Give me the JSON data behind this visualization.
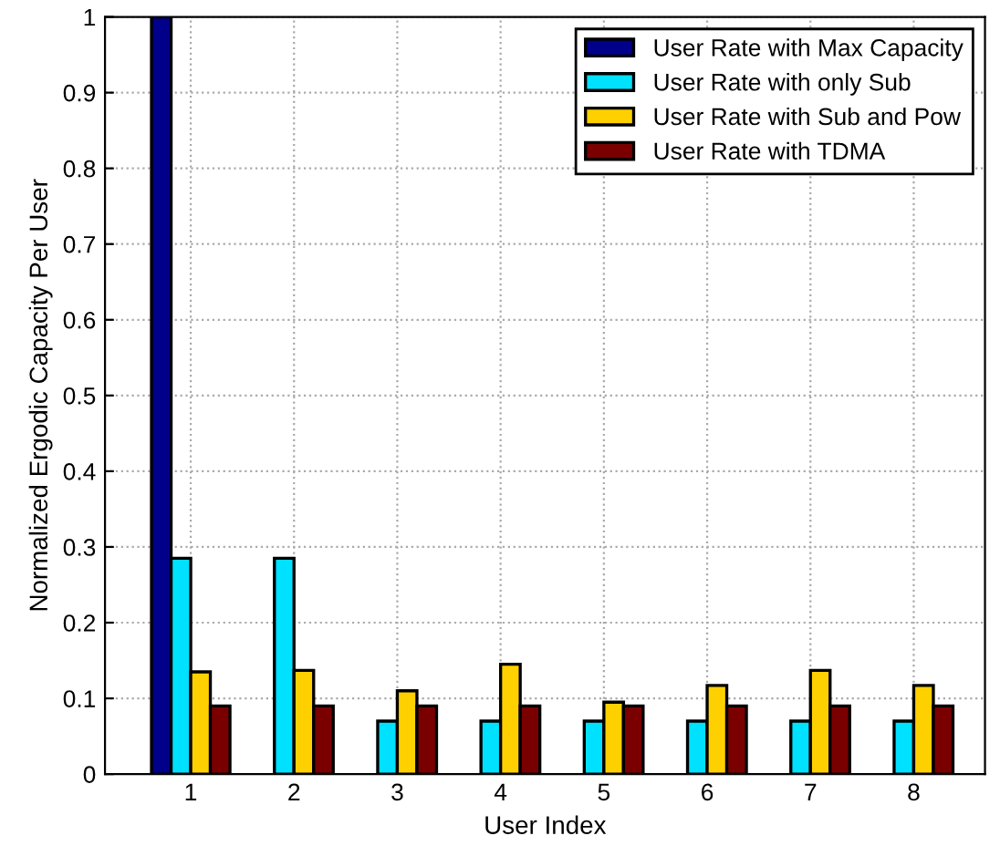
{
  "chart_data": {
    "type": "bar",
    "xlabel": "User Index",
    "ylabel": "Normalized Ergodic Capacity Per User",
    "x": [
      1,
      2,
      3,
      4,
      5,
      6,
      7,
      8
    ],
    "series": [
      {
        "name": "User Rate with Max Capacity",
        "color": "#00008b",
        "values": [
          1,
          null,
          null,
          null,
          null,
          null,
          null,
          null
        ]
      },
      {
        "name": "User Rate with only Sub",
        "color": "#00e0ff",
        "values": [
          0.285,
          0.285,
          0.07,
          0.07,
          0.07,
          0.07,
          0.07,
          0.07
        ]
      },
      {
        "name": "User Rate with Sub and Pow",
        "color": "#ffd000",
        "values": [
          0.135,
          0.137,
          0.11,
          0.145,
          0.095,
          0.117,
          0.137,
          0.117
        ]
      },
      {
        "name": "User Rate with TDMA",
        "color": "#7a0000",
        "values": [
          0.09,
          0.09,
          0.09,
          0.09,
          0.09,
          0.09,
          0.09,
          0.09
        ]
      }
    ],
    "xlim": [
      0.17,
      8.69
    ],
    "xticks": [
      1,
      2,
      3,
      4,
      5,
      6,
      7,
      8
    ],
    "ylim": [
      0,
      1
    ],
    "yticks": [
      0,
      0.1,
      0.2,
      0.3,
      0.4,
      0.5,
      0.6,
      0.7,
      0.8,
      0.9,
      1
    ],
    "grid": true,
    "legend": "top right"
  }
}
